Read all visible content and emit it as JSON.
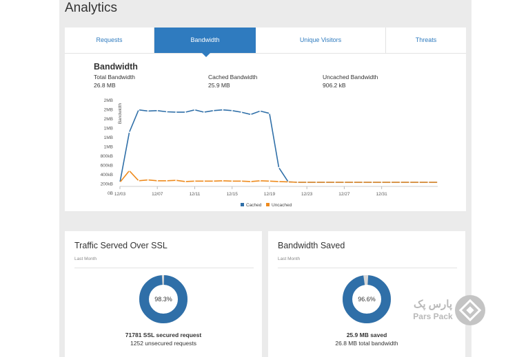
{
  "header": {
    "title": "Analytics"
  },
  "tabs": [
    {
      "label": "Requests",
      "active": false
    },
    {
      "label": "Bandwidth",
      "active": true
    },
    {
      "label": "Unique Visitors",
      "active": false
    },
    {
      "label": "Threats",
      "active": false
    }
  ],
  "bandwidth": {
    "title": "Bandwidth",
    "stats": [
      {
        "label": "Total Bandwidth",
        "value": "26.8 MB"
      },
      {
        "label": "Cached Bandwidth",
        "value": "25.9 MB"
      },
      {
        "label": "Uncached Bandwidth",
        "value": "906.2 kB"
      }
    ]
  },
  "colors": {
    "accent": "#2f7bbf",
    "cached": "#2f6fa8",
    "uncached": "#ee8a1c",
    "donut_rest": "#d8d8d8"
  },
  "chart_data": {
    "type": "line",
    "ylabel": "Bandwidth",
    "y_ticks": [
      "2MB",
      "2MB",
      "2MB",
      "1MB",
      "1MB",
      "1MB",
      "800kB",
      "600kB",
      "400kB",
      "200kB",
      "0B"
    ],
    "x_ticks": [
      "12/03",
      "12/07",
      "12/11",
      "12/15",
      "12/19",
      "12/23",
      "12/27",
      "12/31"
    ],
    "ylim": [
      0,
      2000
    ],
    "y_unit": "kB",
    "grid": false,
    "legend": "bottom",
    "series": [
      {
        "name": "Cached",
        "values": [
          0,
          1300,
          1880,
          1850,
          1860,
          1830,
          1820,
          1820,
          1880,
          1820,
          1860,
          1880,
          1860,
          1820,
          1760,
          1850,
          1790,
          380,
          10,
          0,
          0,
          0,
          0,
          0,
          0,
          0,
          0,
          0,
          0,
          0,
          0,
          0,
          0,
          0,
          0
        ]
      },
      {
        "name": "Uncached",
        "values": [
          0,
          300,
          40,
          60,
          40,
          40,
          50,
          20,
          30,
          30,
          30,
          40,
          30,
          30,
          20,
          40,
          30,
          20,
          10,
          0,
          0,
          0,
          0,
          0,
          0,
          0,
          0,
          0,
          0,
          0,
          0,
          0,
          0,
          0,
          0
        ]
      }
    ]
  },
  "ssl_card": {
    "title": "Traffic Served Over SSL",
    "subtitle": "Last Month",
    "percent_label": "98.3%",
    "percent": 98.3,
    "line1": "71781 SSL secured request",
    "line2": "1252 unsecured requests"
  },
  "saved_card": {
    "title": "Bandwidth Saved",
    "subtitle": "Last Month",
    "percent_label": "96.6%",
    "percent": 96.6,
    "line1": "25.9 MB saved",
    "line2": "26.8 MB total bandwidth"
  },
  "watermark": {
    "text_fa": "پارس پک",
    "text_en": "Pars Pack"
  }
}
